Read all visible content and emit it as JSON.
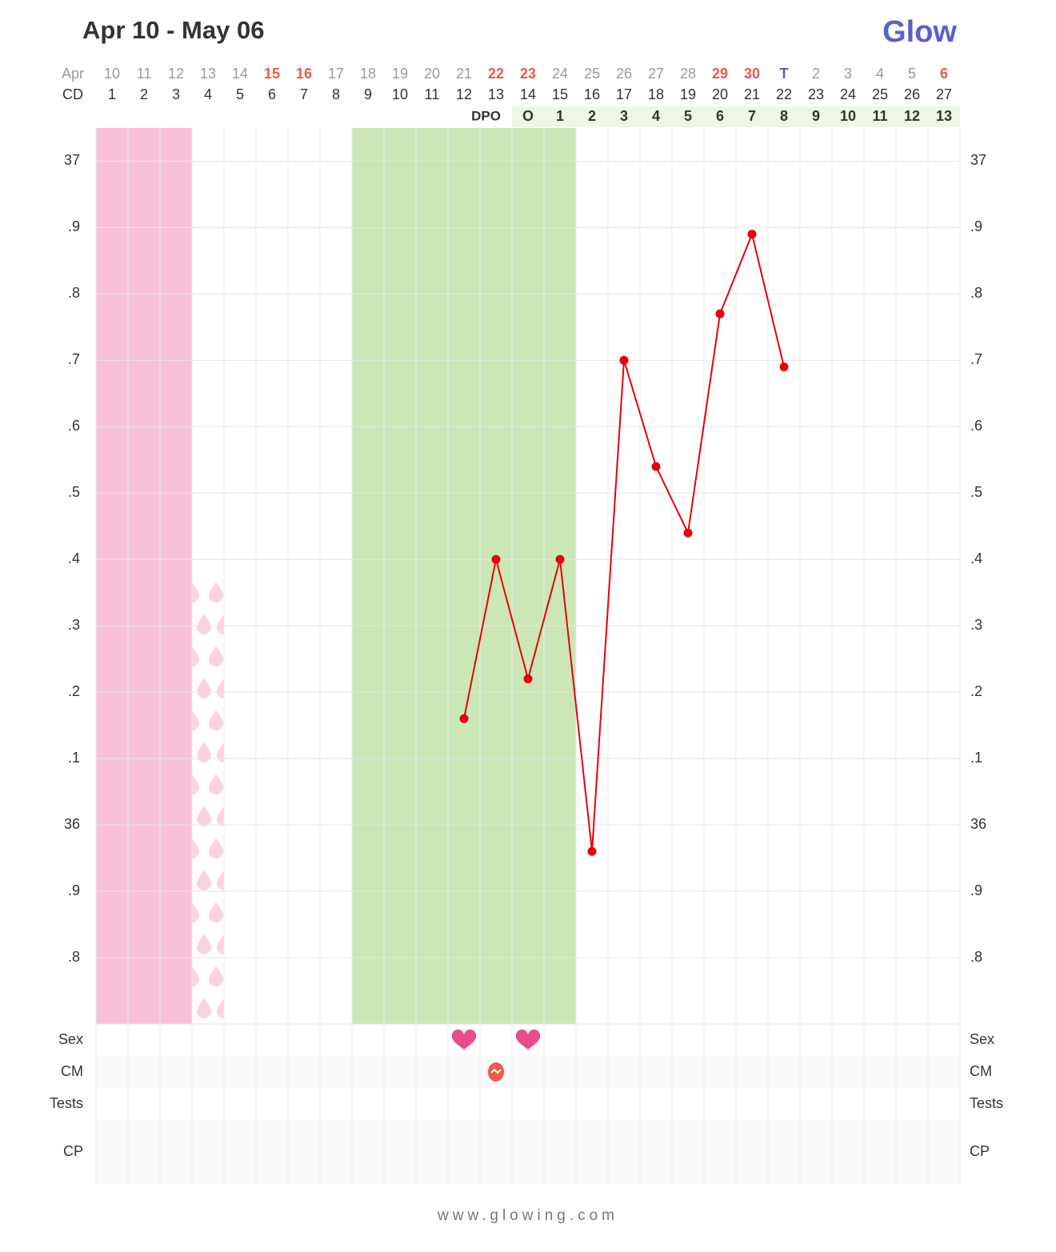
{
  "chart_data": {
    "type": "line",
    "title": "Apr 10 - May 06",
    "logo": "Glow",
    "footer": "www.glowing.com",
    "month_label": "Apr",
    "dates": [
      "10",
      "11",
      "12",
      "13",
      "14",
      "15",
      "16",
      "17",
      "18",
      "19",
      "20",
      "21",
      "22",
      "23",
      "24",
      "25",
      "26",
      "27",
      "28",
      "29",
      "30",
      "T",
      "2",
      "3",
      "4",
      "5",
      "6"
    ],
    "date_colors": [
      "#999",
      "#999",
      "#999",
      "#999",
      "#999",
      "#e8594a",
      "#e8594a",
      "#999",
      "#999",
      "#999",
      "#999",
      "#999",
      "#e8594a",
      "#e8594a",
      "#999",
      "#999",
      "#999",
      "#999",
      "#999",
      "#e8594a",
      "#e8594a",
      "#5a5fd0",
      "#999",
      "#999",
      "#999",
      "#999",
      "#e8594a"
    ],
    "cd_label": "CD",
    "categories": [
      1,
      2,
      3,
      4,
      5,
      6,
      7,
      8,
      9,
      10,
      11,
      12,
      13,
      14,
      15,
      16,
      17,
      18,
      19,
      20,
      21,
      22,
      23,
      24,
      25,
      26,
      27
    ],
    "dpo_label": "DPO",
    "dpo": [
      null,
      null,
      null,
      null,
      null,
      null,
      null,
      null,
      null,
      null,
      null,
      null,
      null,
      "O",
      1,
      2,
      3,
      4,
      5,
      6,
      7,
      8,
      9,
      10,
      11,
      12,
      13
    ],
    "series": [
      {
        "name": "Temperature",
        "color": "#e8000b",
        "values": [
          null,
          null,
          null,
          null,
          null,
          null,
          null,
          null,
          null,
          null,
          null,
          36.16,
          36.4,
          36.22,
          36.4,
          35.96,
          36.7,
          36.54,
          36.44,
          36.77,
          36.89,
          36.69,
          null,
          null,
          null,
          null,
          null
        ]
      }
    ],
    "ylim": [
      35.7,
      37.05
    ],
    "yticks": [
      37,
      {
        "value": 36.9,
        "label": ".9"
      },
      {
        "value": 36.8,
        "label": ".8"
      },
      {
        "value": 36.7,
        "label": ".7"
      },
      {
        "value": 36.6,
        "label": ".6"
      },
      {
        "value": 36.5,
        "label": ".5"
      },
      {
        "value": 36.4,
        "label": ".4"
      },
      {
        "value": 36.3,
        "label": ".3"
      },
      {
        "value": 36.2,
        "label": ".2"
      },
      {
        "value": 36.1,
        "label": ".1"
      },
      36,
      {
        "value": 35.9,
        "label": ".9"
      },
      {
        "value": 35.8,
        "label": ".8"
      }
    ],
    "period_days": [
      1,
      3
    ],
    "period_color": "#f6c1d6",
    "spotting_days": [
      4,
      4
    ],
    "fertile_window": [
      9,
      15
    ],
    "fertile_color": "#cbe7b6",
    "grid": true,
    "rows": [
      {
        "name": "Sex",
        "days": [
          12,
          14
        ]
      },
      {
        "name": "CM",
        "days": [
          13
        ]
      },
      {
        "name": "Tests",
        "days": []
      },
      {
        "name": "CP",
        "days": []
      }
    ]
  }
}
